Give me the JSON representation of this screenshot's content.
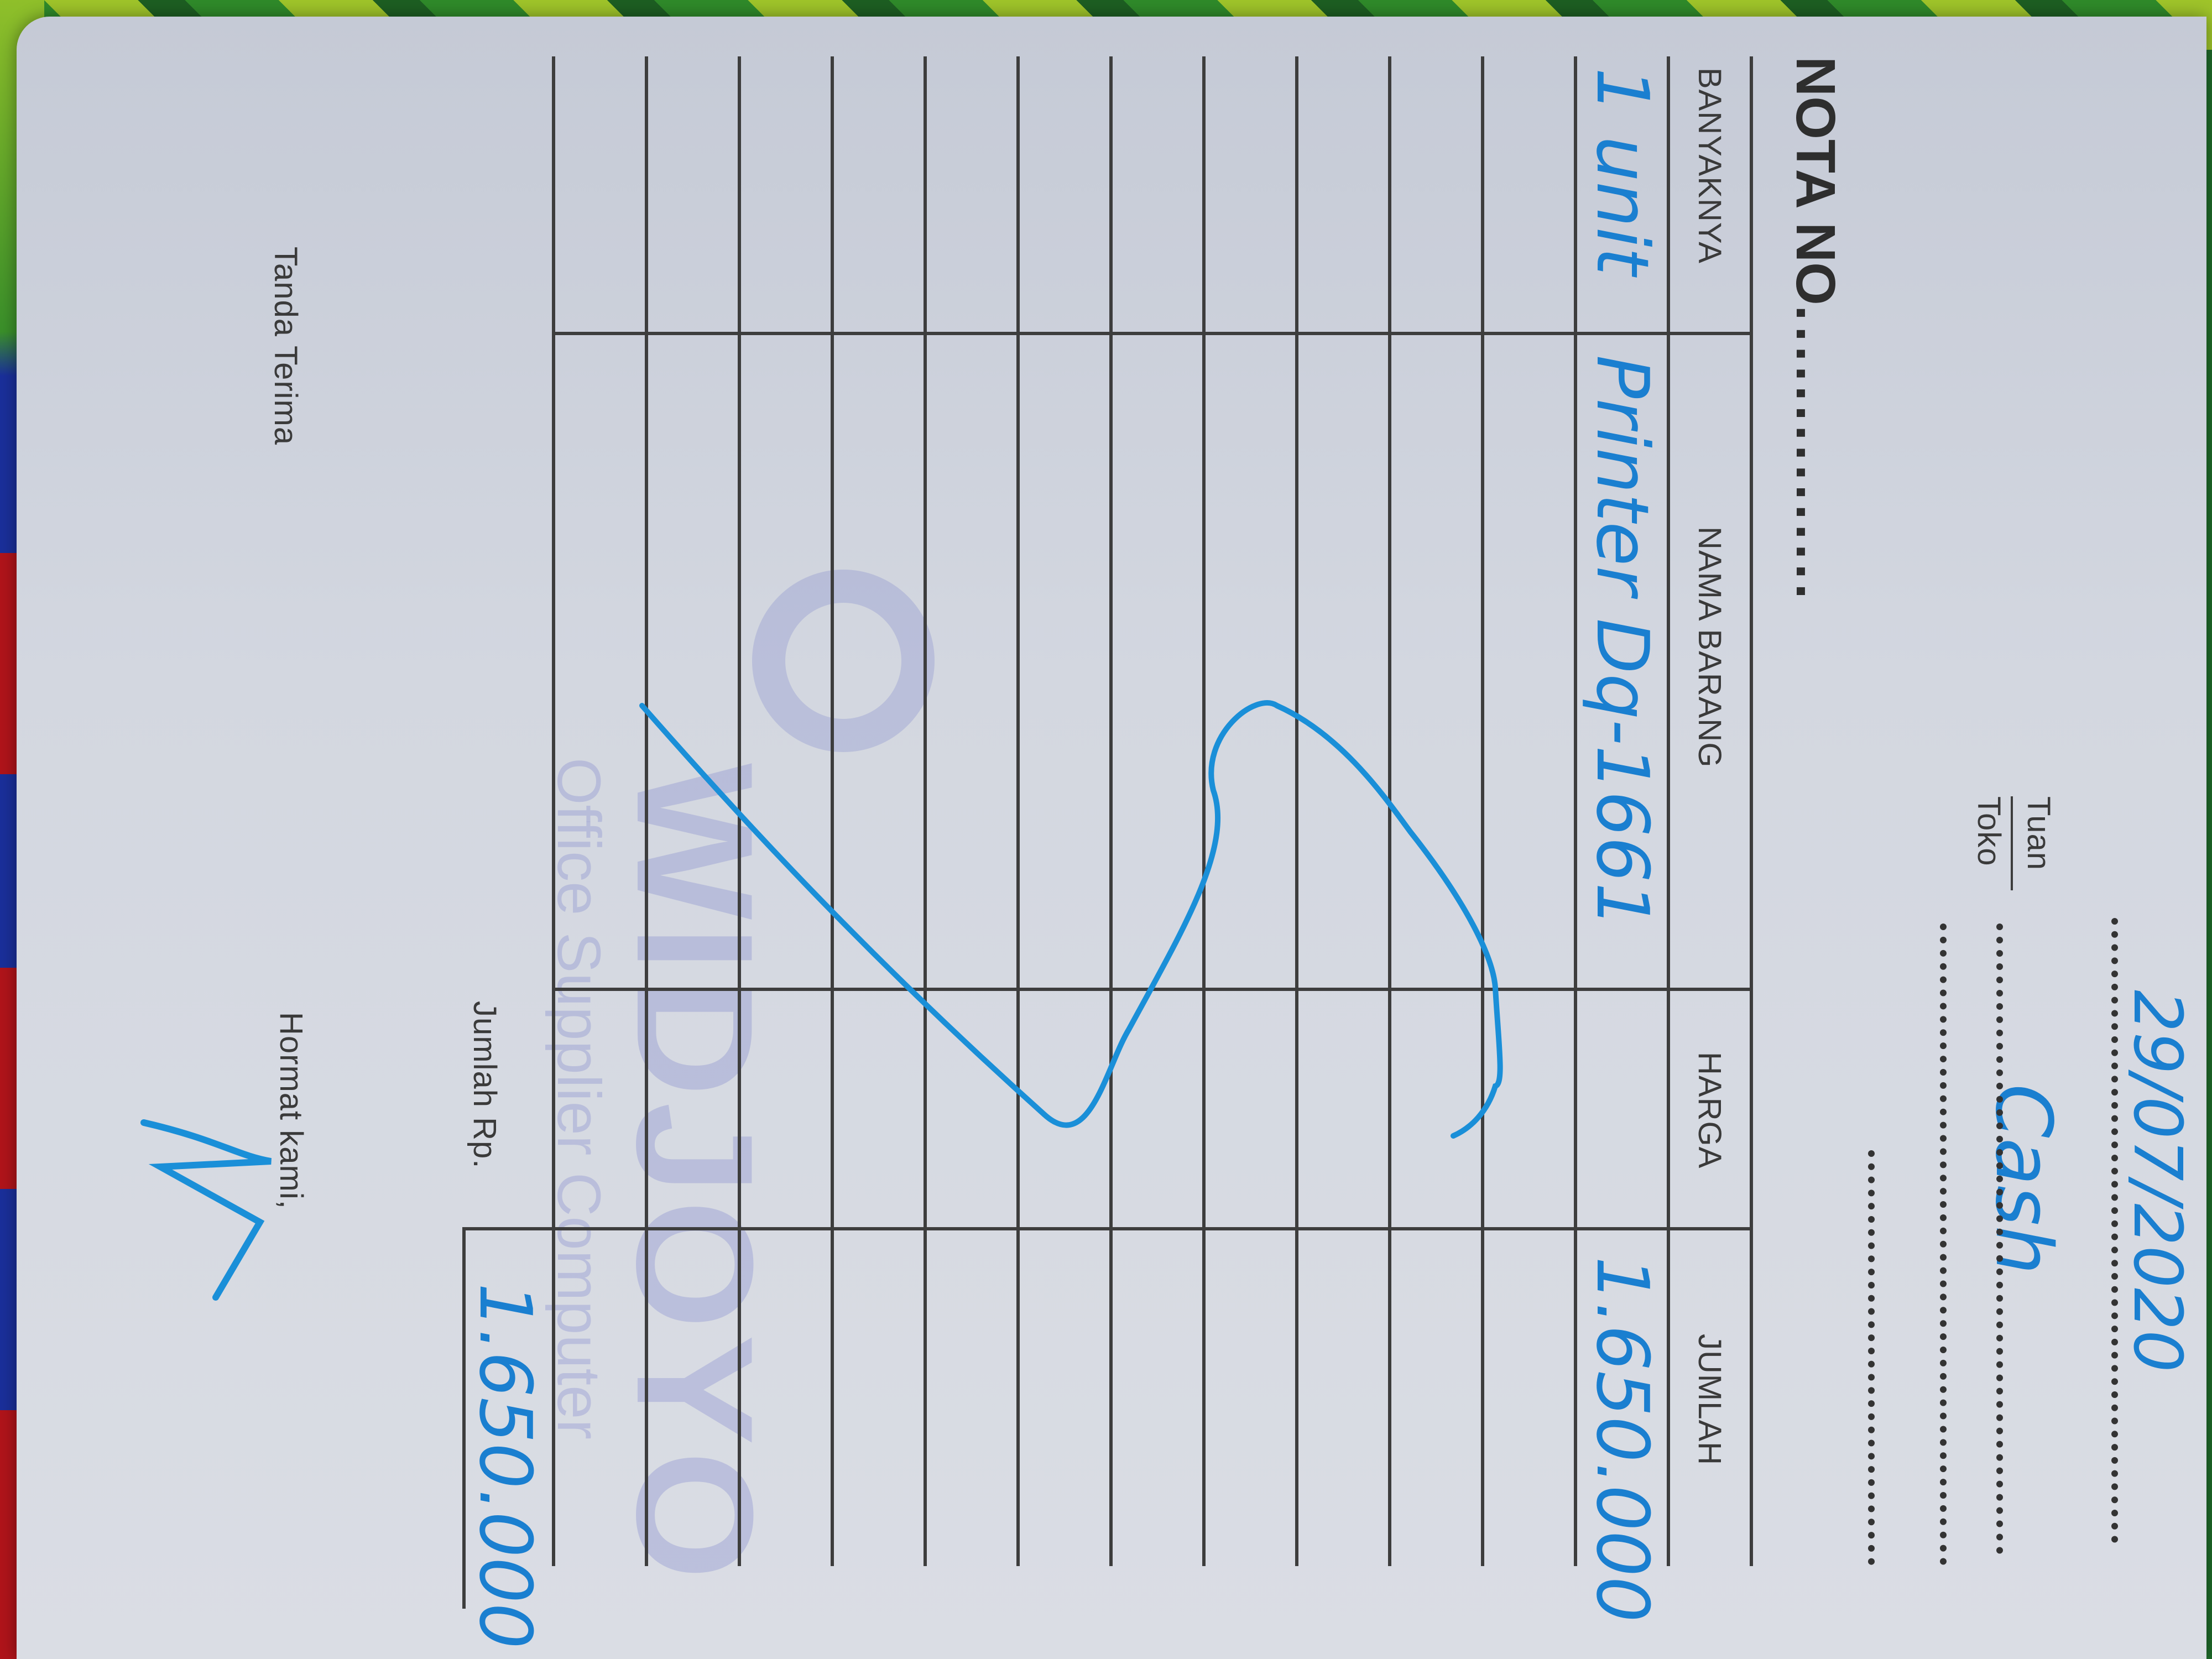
{
  "receipt": {
    "date": "29/07/2020",
    "tuan_label": "Tuan",
    "toko_label": "Toko",
    "customer": "Cash",
    "nota_no_label": "NOTA NO.",
    "nota_no_dots": "..............",
    "table": {
      "headers": [
        "BANYAKNYA",
        "NAMA BARANG",
        "HARGA",
        "JUMLAH"
      ],
      "rows": [
        {
          "qty": "1 unit",
          "item": "Printer Dq-1661",
          "price": "",
          "amount": "1.650.000"
        }
      ],
      "empty_rows": 11
    },
    "total_label": "Jumlah Rp.",
    "total_value": "1.650.000",
    "received_label": "Tanda Terima",
    "regards_label": "Hormat kami,",
    "watermark": {
      "brand": "WIDJOYO",
      "tagline": "Office Supplier Computer"
    },
    "colors": {
      "ink": "#1a7fd0",
      "paper": "#d3d7e0",
      "print": "#3a3a3a"
    }
  }
}
